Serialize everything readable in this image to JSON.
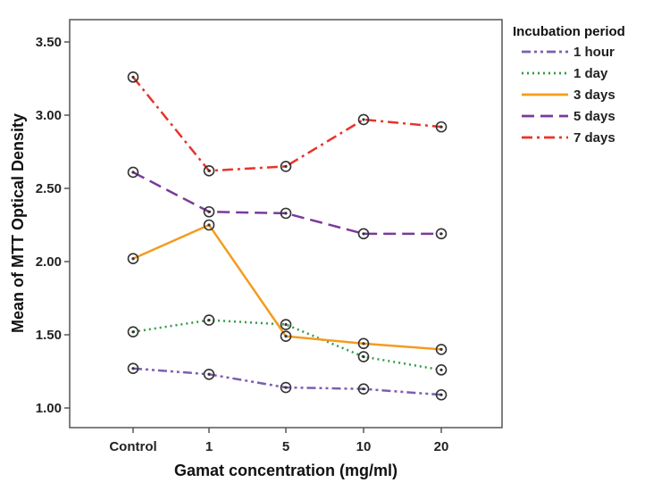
{
  "chart_data": {
    "type": "line",
    "xlabel": "Gamat concentration (mg/ml)",
    "ylabel": "Mean of MTT Optical Density",
    "categories": [
      "Control",
      "1",
      "5",
      "10",
      "20"
    ],
    "ylim": [
      0.9,
      3.6
    ],
    "yticks": [
      "1.00",
      "1.50",
      "2.00",
      "2.50",
      "3.00",
      "3.50"
    ],
    "ytick_values": [
      1.0,
      1.5,
      2.0,
      2.5,
      3.0,
      3.5
    ],
    "grid": false,
    "legend": {
      "title": "Incubation period",
      "placement": "right"
    },
    "series": [
      {
        "name": "1 hour",
        "values": [
          1.27,
          1.23,
          1.14,
          1.13,
          1.09
        ],
        "color": "#7b5fb0",
        "dash": "dashdotdot"
      },
      {
        "name": "1 day",
        "values": [
          1.52,
          1.6,
          1.57,
          1.35,
          1.26
        ],
        "color": "#2e9b45",
        "dash": "dotted"
      },
      {
        "name": "3 days",
        "values": [
          2.02,
          2.25,
          1.49,
          1.44,
          1.4
        ],
        "color": "#f39c1f",
        "dash": "solid"
      },
      {
        "name": "5 days",
        "values": [
          2.61,
          2.34,
          2.33,
          2.19,
          2.19
        ],
        "color": "#7a3a9a",
        "dash": "dashed"
      },
      {
        "name": "7 days",
        "values": [
          3.26,
          2.62,
          2.65,
          2.97,
          2.92
        ],
        "color": "#e8332a",
        "dash": "dashdot"
      }
    ]
  }
}
